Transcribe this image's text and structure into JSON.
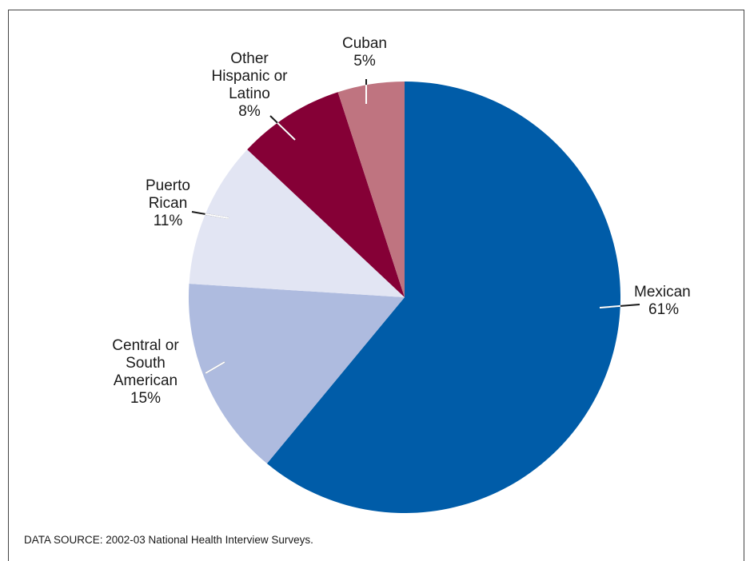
{
  "chart_data": {
    "type": "pie",
    "title": "",
    "slices": [
      {
        "label": "Mexican",
        "value": 61,
        "value_label": "61%",
        "color": "#005ca8"
      },
      {
        "label": "Central or South American",
        "value": 15,
        "value_label": "15%",
        "color": "#aebbdf"
      },
      {
        "label": "Puerto Rican",
        "value": 11,
        "value_label": "11%",
        "color": "#e2e5f3"
      },
      {
        "label": "Other Hispanic or Latino",
        "value": 8,
        "value_label": "8%",
        "color": "#850036"
      },
      {
        "label": "Cuban",
        "value": 5,
        "value_label": "5%",
        "color": "#bf7480"
      }
    ],
    "start_angle_deg": 0,
    "direction": "clockwise"
  },
  "footer": {
    "source": "DATA SOURCE: 2002-03 National Health Interview Surveys."
  }
}
